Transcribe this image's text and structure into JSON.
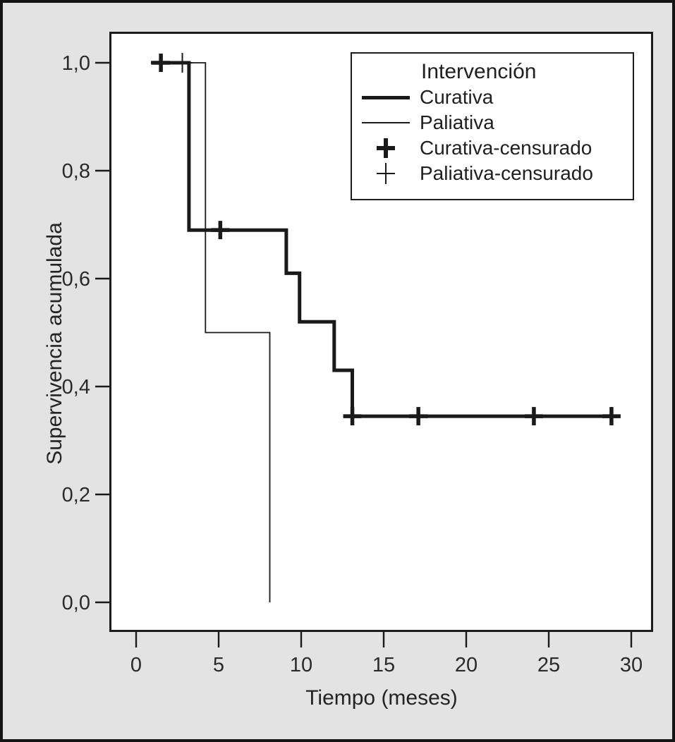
{
  "figure": {
    "background_color": "#e3e3e3",
    "plot_background_color": "#ffffff",
    "line_color": "#1a1a1a",
    "border_color": "#141414"
  },
  "chart_data": {
    "type": "line",
    "subtype": "kaplan-meier-step-survival",
    "title": "",
    "xlabel": "Tiempo (meses)",
    "ylabel": "Supervivencia acumulada",
    "xlim": [
      0,
      30
    ],
    "ylim": [
      0.0,
      1.0
    ],
    "grid": false,
    "x_ticks": [
      0,
      5,
      10,
      15,
      20,
      25,
      30
    ],
    "x_tick_labels": [
      "0",
      "5",
      "10",
      "15",
      "20",
      "25",
      "30"
    ],
    "y_ticks": [
      0.0,
      0.2,
      0.4,
      0.6,
      0.8,
      1.0
    ],
    "y_tick_labels": [
      "0,0",
      "0,2",
      "0,4",
      "0,6",
      "0,8",
      "1,0"
    ],
    "legend": {
      "title": "Intervención",
      "position": "upper-right",
      "items": [
        {
          "label": "Curativa",
          "marker": "thick-line"
        },
        {
          "label": "Paliativa",
          "marker": "thin-line"
        },
        {
          "label": "Curativa-censurado",
          "marker": "thick-plus"
        },
        {
          "label": "Paliativa-censurado",
          "marker": "thin-plus"
        }
      ]
    },
    "series": [
      {
        "name": "Paliativa",
        "line_weight": "thin",
        "color": "#1a1a1a",
        "step_points": [
          [
            0.9,
            1.0
          ],
          [
            4.2,
            1.0
          ],
          [
            4.2,
            0.5
          ],
          [
            8.1,
            0.5
          ],
          [
            8.1,
            0.0
          ]
        ],
        "censored_points": [
          [
            2.8,
            1.0
          ]
        ]
      },
      {
        "name": "Curativa",
        "line_weight": "thick",
        "color": "#1a1a1a",
        "step_points": [
          [
            0.9,
            1.0
          ],
          [
            3.2,
            1.0
          ],
          [
            3.2,
            0.69
          ],
          [
            9.1,
            0.69
          ],
          [
            9.1,
            0.61
          ],
          [
            9.9,
            0.61
          ],
          [
            9.9,
            0.52
          ],
          [
            12.0,
            0.52
          ],
          [
            12.0,
            0.43
          ],
          [
            13.1,
            0.43
          ],
          [
            13.1,
            0.345
          ],
          [
            29.3,
            0.345
          ]
        ],
        "censored_points": [
          [
            1.5,
            1.0
          ],
          [
            5.1,
            0.69
          ],
          [
            13.1,
            0.345
          ],
          [
            17.1,
            0.345
          ],
          [
            24.1,
            0.345
          ],
          [
            28.8,
            0.345
          ]
        ]
      }
    ]
  }
}
